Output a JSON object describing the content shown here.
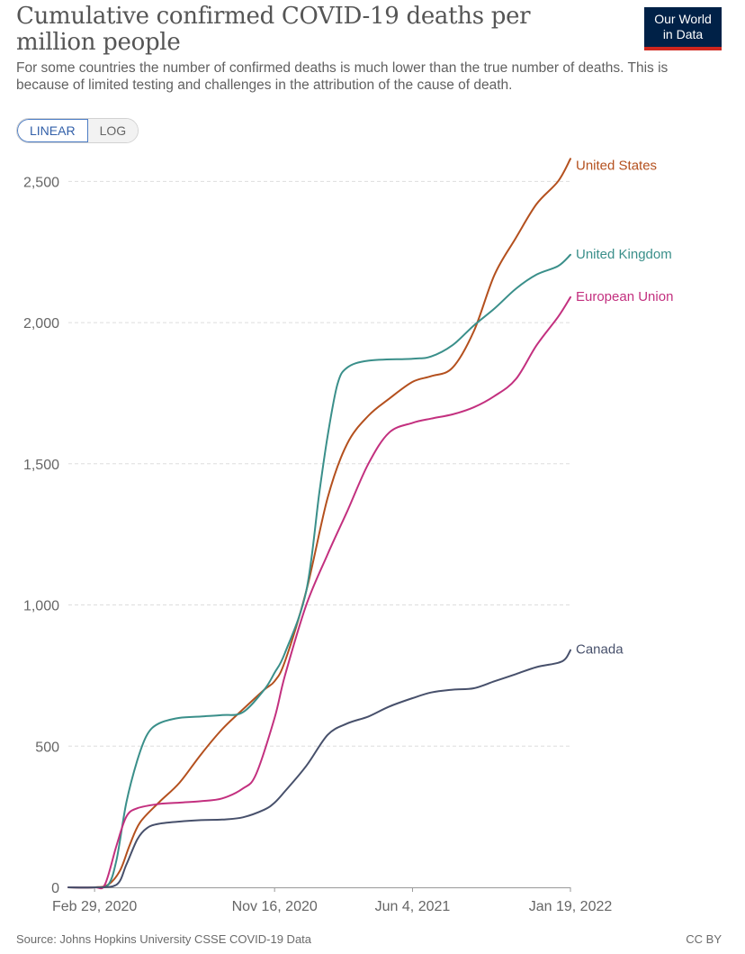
{
  "header": {
    "title": "Cumulative confirmed COVID-19 deaths per million people",
    "subtitle": "For some countries the number of confirmed deaths is much lower than the true number of deaths. This is because of limited testing and challenges in the attribution of the cause of death.",
    "logo_line1": "Our World",
    "logo_line2": "in Data"
  },
  "controls": {
    "linear_label": "LINEAR",
    "log_label": "LOG",
    "selected": "LINEAR"
  },
  "footer": {
    "source": "Source: Johns Hopkins University CSSE COVID-19 Data",
    "license": "CC BY"
  },
  "colors": {
    "united_states": "#b4501e",
    "united_kingdom": "#3a8f8a",
    "european_union": "#c3307f",
    "canada": "#47506b",
    "gridline": "#dddddd",
    "logo_bg": "#002147",
    "logo_bar": "#ce261e"
  },
  "chart_data": {
    "type": "line",
    "title": "Cumulative confirmed COVID-19 deaths per million people",
    "xlabel": "",
    "ylabel": "",
    "x_axis": "date",
    "xlim": [
      "2020-01-22",
      "2022-01-19"
    ],
    "ylim": [
      0,
      2600
    ],
    "yticks": [
      0,
      500,
      1000,
      1500,
      2000,
      2500
    ],
    "ytick_labels": [
      "0",
      "500",
      "1,000",
      "1,500",
      "2,000",
      "2,500"
    ],
    "xticks": [
      "2020-02-29",
      "2020-11-16",
      "2021-06-04",
      "2022-01-19"
    ],
    "xtick_labels": [
      "Feb 29, 2020",
      "Nov 16, 2020",
      "Jun 4, 2021",
      "Jan 19, 2022"
    ],
    "grid": "horizontal dashed",
    "legend": "inline labels at line ends (right)",
    "series": [
      {
        "name": "United States",
        "points": [
          [
            "2020-01-22",
            0
          ],
          [
            "2020-02-29",
            0
          ],
          [
            "2020-03-20",
            10
          ],
          [
            "2020-04-06",
            60
          ],
          [
            "2020-04-20",
            150
          ],
          [
            "2020-05-05",
            230
          ],
          [
            "2020-06-01",
            300
          ],
          [
            "2020-07-01",
            370
          ],
          [
            "2020-08-01",
            470
          ],
          [
            "2020-09-01",
            560
          ],
          [
            "2020-10-01",
            630
          ],
          [
            "2020-11-01",
            700
          ],
          [
            "2020-11-16",
            730
          ],
          [
            "2020-12-01",
            800
          ],
          [
            "2021-01-01",
            1050
          ],
          [
            "2021-02-01",
            1380
          ],
          [
            "2021-03-01",
            1570
          ],
          [
            "2021-04-01",
            1670
          ],
          [
            "2021-05-01",
            1730
          ],
          [
            "2021-06-04",
            1790
          ],
          [
            "2021-07-01",
            1810
          ],
          [
            "2021-08-01",
            1840
          ],
          [
            "2021-09-01",
            1970
          ],
          [
            "2021-10-01",
            2170
          ],
          [
            "2021-11-01",
            2300
          ],
          [
            "2021-12-01",
            2420
          ],
          [
            "2022-01-01",
            2500
          ],
          [
            "2022-01-19",
            2580
          ]
        ]
      },
      {
        "name": "United Kingdom",
        "points": [
          [
            "2020-01-22",
            0
          ],
          [
            "2020-02-29",
            0
          ],
          [
            "2020-03-20",
            10
          ],
          [
            "2020-04-01",
            100
          ],
          [
            "2020-04-15",
            300
          ],
          [
            "2020-05-01",
            450
          ],
          [
            "2020-05-15",
            540
          ],
          [
            "2020-06-01",
            580
          ],
          [
            "2020-07-01",
            600
          ],
          [
            "2020-08-01",
            605
          ],
          [
            "2020-09-01",
            610
          ],
          [
            "2020-10-01",
            620
          ],
          [
            "2020-11-01",
            700
          ],
          [
            "2020-11-16",
            760
          ],
          [
            "2020-12-01",
            830
          ],
          [
            "2021-01-01",
            1050
          ],
          [
            "2021-01-20",
            1400
          ],
          [
            "2021-02-01",
            1600
          ],
          [
            "2021-02-15",
            1780
          ],
          [
            "2021-03-01",
            1840
          ],
          [
            "2021-04-01",
            1865
          ],
          [
            "2021-06-04",
            1872
          ],
          [
            "2021-07-01",
            1880
          ],
          [
            "2021-08-01",
            1920
          ],
          [
            "2021-09-01",
            1990
          ],
          [
            "2021-10-01",
            2050
          ],
          [
            "2021-11-01",
            2120
          ],
          [
            "2021-12-01",
            2170
          ],
          [
            "2022-01-01",
            2200
          ],
          [
            "2022-01-19",
            2240
          ]
        ]
      },
      {
        "name": "European Union",
        "points": [
          [
            "2020-01-22",
            0
          ],
          [
            "2020-02-29",
            0
          ],
          [
            "2020-03-15",
            10
          ],
          [
            "2020-04-01",
            150
          ],
          [
            "2020-04-15",
            250
          ],
          [
            "2020-05-01",
            280
          ],
          [
            "2020-06-01",
            295
          ],
          [
            "2020-07-01",
            300
          ],
          [
            "2020-08-01",
            305
          ],
          [
            "2020-09-01",
            315
          ],
          [
            "2020-10-01",
            350
          ],
          [
            "2020-10-20",
            400
          ],
          [
            "2020-11-16",
            600
          ],
          [
            "2020-12-01",
            750
          ],
          [
            "2021-01-01",
            1000
          ],
          [
            "2021-02-01",
            1180
          ],
          [
            "2021-03-01",
            1330
          ],
          [
            "2021-04-01",
            1500
          ],
          [
            "2021-05-01",
            1610
          ],
          [
            "2021-06-04",
            1645
          ],
          [
            "2021-07-01",
            1660
          ],
          [
            "2021-08-01",
            1675
          ],
          [
            "2021-09-01",
            1700
          ],
          [
            "2021-10-01",
            1740
          ],
          [
            "2021-11-01",
            1800
          ],
          [
            "2021-12-01",
            1920
          ],
          [
            "2022-01-01",
            2020
          ],
          [
            "2022-01-19",
            2090
          ]
        ]
      },
      {
        "name": "Canada",
        "points": [
          [
            "2020-01-22",
            0
          ],
          [
            "2020-02-29",
            0
          ],
          [
            "2020-04-01",
            10
          ],
          [
            "2020-04-15",
            80
          ],
          [
            "2020-05-01",
            170
          ],
          [
            "2020-05-15",
            210
          ],
          [
            "2020-06-01",
            225
          ],
          [
            "2020-07-01",
            233
          ],
          [
            "2020-08-01",
            238
          ],
          [
            "2020-09-01",
            240
          ],
          [
            "2020-10-01",
            248
          ],
          [
            "2020-11-01",
            275
          ],
          [
            "2020-11-16",
            300
          ],
          [
            "2020-12-01",
            340
          ],
          [
            "2021-01-01",
            430
          ],
          [
            "2021-02-01",
            540
          ],
          [
            "2021-03-01",
            580
          ],
          [
            "2021-04-01",
            605
          ],
          [
            "2021-05-01",
            640
          ],
          [
            "2021-06-04",
            670
          ],
          [
            "2021-07-01",
            690
          ],
          [
            "2021-08-01",
            700
          ],
          [
            "2021-09-01",
            705
          ],
          [
            "2021-10-01",
            730
          ],
          [
            "2021-11-01",
            755
          ],
          [
            "2021-12-01",
            780
          ],
          [
            "2022-01-01",
            795
          ],
          [
            "2022-01-12",
            810
          ],
          [
            "2022-01-19",
            840
          ]
        ]
      }
    ]
  }
}
